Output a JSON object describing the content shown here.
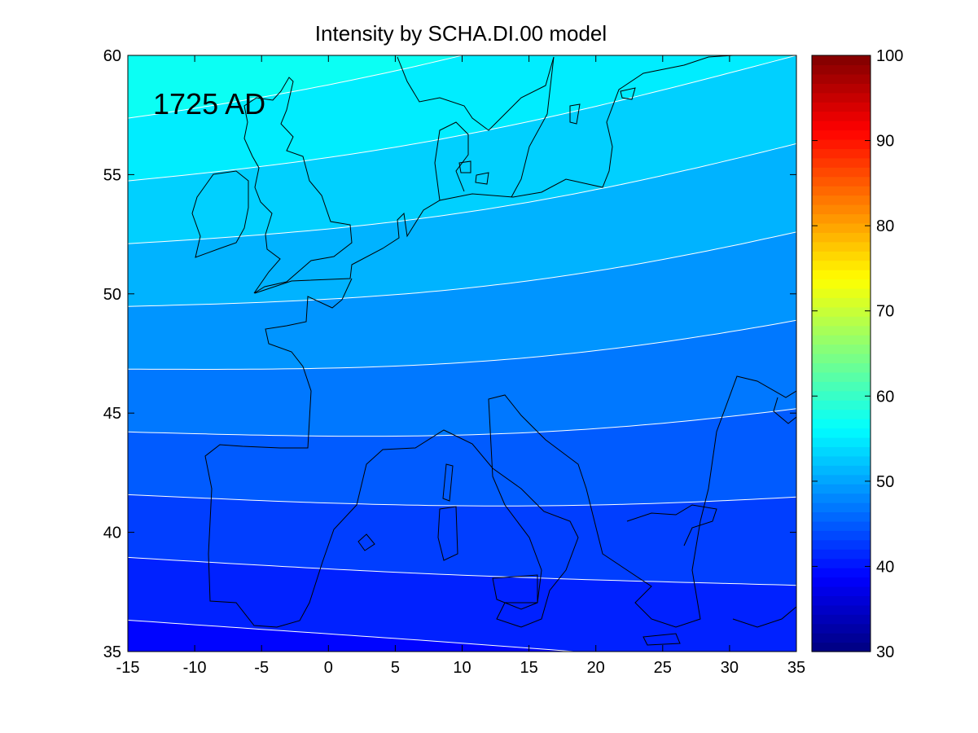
{
  "chart_data": {
    "type": "heatmap",
    "title": "Intensity by SCHA.DI.00 model",
    "annotation": "1725 AD",
    "xlabel": "",
    "ylabel": "",
    "xlim": [
      -15,
      35
    ],
    "ylim": [
      35,
      60
    ],
    "x_ticks": [
      "-15",
      "-10",
      "-5",
      "0",
      "5",
      "10",
      "15",
      "20",
      "25",
      "30",
      "35"
    ],
    "y_ticks": [
      "35",
      "40",
      "45",
      "50",
      "55",
      "60"
    ],
    "colorbar": {
      "range": [
        30,
        100
      ],
      "ticks": [
        "30",
        "40",
        "50",
        "60",
        "70",
        "80",
        "90",
        "100"
      ],
      "colormap": "jet"
    },
    "contour_lines_color": "#ffffff",
    "coastline_color": "#000000",
    "grid": false,
    "intensity_estimates": [
      {
        "lon": -15,
        "lat": 35,
        "value": 39
      },
      {
        "lon": 35,
        "lat": 35,
        "value": 40
      },
      {
        "lon": -15,
        "lat": 47.5,
        "value": 48
      },
      {
        "lon": 10,
        "lat": 47.5,
        "value": 48
      },
      {
        "lon": -15,
        "lat": 60,
        "value": 58
      },
      {
        "lon": 35,
        "lat": 60,
        "value": 53
      }
    ]
  }
}
